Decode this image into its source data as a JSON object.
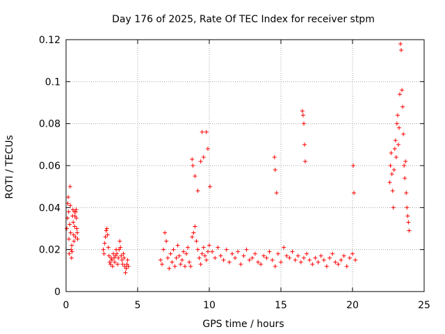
{
  "chart_data": {
    "type": "scatter",
    "title": "Day 176 of 2025, Rate Of TEC Index for receiver stpm",
    "xlabel": "GPS time / hours",
    "ylabel": "ROTI / TECUs",
    "xlim": [
      0,
      25
    ],
    "ylim": [
      0,
      0.12
    ],
    "xticks": [
      0,
      5,
      10,
      15,
      20,
      25
    ],
    "yticks": [
      0,
      0.02,
      0.04,
      0.06,
      0.08,
      0.1,
      0.12
    ],
    "xtick_labels": [
      "0",
      "5",
      "10",
      "15",
      "20",
      "25"
    ],
    "ytick_labels": [
      "0",
      "0.02",
      "0.04",
      "0.06",
      "0.08",
      "0.1",
      "0.12"
    ],
    "grid": true,
    "marker": "plus",
    "color": "#ff0000",
    "series": [
      {
        "name": "ROTI",
        "x": [
          0.05,
          0.1,
          0.12,
          0.15,
          0.18,
          0.2,
          0.22,
          0.25,
          0.28,
          0.3,
          0.32,
          0.35,
          0.38,
          0.4,
          0.42,
          0.45,
          0.48,
          0.5,
          0.52,
          0.55,
          0.58,
          0.6,
          0.62,
          0.65,
          0.68,
          0.7,
          0.72,
          0.75,
          0.78,
          0.8,
          2.6,
          2.65,
          2.7,
          2.75,
          2.8,
          2.85,
          2.9,
          2.95,
          3.0,
          3.05,
          3.1,
          3.15,
          3.2,
          3.25,
          3.3,
          3.35,
          3.4,
          3.45,
          3.5,
          3.55,
          3.6,
          3.65,
          3.7,
          3.75,
          3.8,
          3.85,
          3.9,
          3.95,
          4.0,
          4.05,
          4.1,
          4.15,
          4.2,
          4.25,
          4.3,
          4.35,
          6.6,
          6.7,
          6.8,
          6.9,
          7.0,
          7.1,
          7.2,
          7.3,
          7.4,
          7.5,
          7.6,
          7.7,
          7.8,
          7.9,
          8.0,
          8.1,
          8.2,
          8.3,
          8.4,
          8.5,
          8.6,
          8.7,
          8.8,
          8.9,
          9.0,
          9.1,
          9.2,
          9.3,
          9.4,
          9.5,
          9.6,
          9.7,
          9.8,
          9.9,
          10.0,
          10.2,
          10.4,
          10.6,
          10.8,
          11.0,
          11.2,
          11.4,
          11.6,
          11.8,
          12.0,
          12.2,
          12.4,
          12.6,
          12.8,
          13.0,
          13.2,
          13.4,
          13.6,
          13.8,
          14.0,
          14.2,
          14.4,
          14.6,
          14.8,
          15.0,
          15.2,
          15.4,
          15.6,
          15.8,
          16.0,
          16.2,
          16.4,
          16.6,
          16.8,
          17.0,
          17.2,
          17.4,
          17.6,
          17.8,
          18.0,
          18.2,
          18.4,
          18.6,
          18.8,
          19.0,
          19.2,
          19.4,
          19.6,
          19.8,
          20.0,
          20.2,
          8.8,
          8.85,
          9.0,
          9.2,
          9.4,
          9.5,
          9.6,
          9.8,
          9.9,
          10.05,
          14.55,
          14.6,
          14.7,
          16.5,
          16.55,
          16.6,
          16.7,
          16.65,
          20.05,
          20.1,
          22.6,
          22.65,
          22.7,
          22.75,
          22.8,
          22.85,
          22.9,
          22.95,
          23.0,
          23.05,
          23.1,
          23.15,
          23.2,
          23.25,
          23.3,
          23.35,
          23.4,
          23.45,
          23.5,
          23.55,
          23.6,
          23.65,
          23.7,
          23.75,
          23.8,
          23.85,
          23.9,
          23.95
        ],
        "y": [
          0.03,
          0.035,
          0.042,
          0.045,
          0.038,
          0.025,
          0.018,
          0.032,
          0.05,
          0.041,
          0.028,
          0.02,
          0.016,
          0.022,
          0.019,
          0.036,
          0.039,
          0.033,
          0.027,
          0.024,
          0.038,
          0.031,
          0.036,
          0.026,
          0.038,
          0.039,
          0.035,
          0.03,
          0.028,
          0.025,
          0.02,
          0.018,
          0.023,
          0.026,
          0.029,
          0.03,
          0.027,
          0.021,
          0.017,
          0.014,
          0.013,
          0.016,
          0.015,
          0.012,
          0.018,
          0.016,
          0.014,
          0.017,
          0.02,
          0.018,
          0.013,
          0.016,
          0.02,
          0.024,
          0.021,
          0.017,
          0.015,
          0.013,
          0.018,
          0.016,
          0.012,
          0.009,
          0.011,
          0.013,
          0.015,
          0.012,
          0.015,
          0.013,
          0.02,
          0.028,
          0.024,
          0.016,
          0.011,
          0.018,
          0.014,
          0.02,
          0.012,
          0.016,
          0.022,
          0.017,
          0.013,
          0.015,
          0.019,
          0.012,
          0.018,
          0.021,
          0.014,
          0.012,
          0.026,
          0.028,
          0.031,
          0.024,
          0.02,
          0.016,
          0.013,
          0.018,
          0.021,
          0.017,
          0.015,
          0.019,
          0.022,
          0.019,
          0.016,
          0.021,
          0.017,
          0.015,
          0.02,
          0.014,
          0.018,
          0.016,
          0.019,
          0.013,
          0.017,
          0.02,
          0.015,
          0.016,
          0.018,
          0.014,
          0.013,
          0.017,
          0.016,
          0.019,
          0.015,
          0.012,
          0.018,
          0.014,
          0.021,
          0.017,
          0.016,
          0.019,
          0.015,
          0.017,
          0.014,
          0.016,
          0.018,
          0.015,
          0.013,
          0.016,
          0.014,
          0.017,
          0.015,
          0.012,
          0.016,
          0.018,
          0.014,
          0.013,
          0.015,
          0.017,
          0.012,
          0.016,
          0.018,
          0.015,
          0.063,
          0.06,
          0.055,
          0.048,
          0.062,
          0.076,
          0.064,
          0.076,
          0.068,
          0.05,
          0.064,
          0.058,
          0.047,
          0.086,
          0.084,
          0.08,
          0.062,
          0.07,
          0.06,
          0.047,
          0.052,
          0.06,
          0.066,
          0.056,
          0.048,
          0.04,
          0.058,
          0.068,
          0.072,
          0.064,
          0.08,
          0.084,
          0.07,
          0.078,
          0.094,
          0.118,
          0.115,
          0.096,
          0.088,
          0.075,
          0.06,
          0.054,
          0.062,
          0.047,
          0.04,
          0.036,
          0.033,
          0.029
        ]
      }
    ]
  }
}
